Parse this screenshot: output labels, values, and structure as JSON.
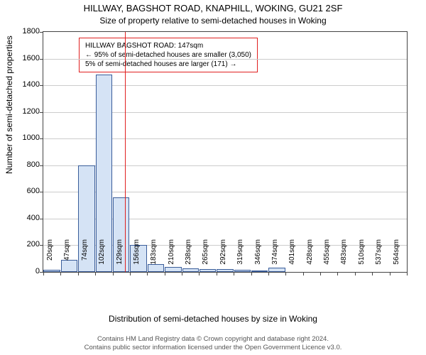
{
  "title": "HILLWAY, BAGSHOT ROAD, KNAPHILL, WOKING, GU21 2SF",
  "subtitle": "Size of property relative to semi-detached houses in Woking",
  "ylabel": "Number of semi-detached properties",
  "xlabel": "Distribution of semi-detached houses by size in Woking",
  "footer_line1": "Contains HM Land Registry data © Crown copyright and database right 2024.",
  "footer_line2": "Contains public sector information licensed under the Open Government Licence v3.0.",
  "chart": {
    "type": "histogram",
    "background_color": "#ffffff",
    "grid_color": "#cccccc",
    "axis_color": "#444444",
    "bar_fill": "#d5e3f5",
    "bar_border": "#3a5d9a",
    "marker_color": "#e02020",
    "ylim": [
      0,
      1800
    ],
    "ytick_step": 200,
    "yticks": [
      0,
      200,
      400,
      600,
      800,
      1000,
      1200,
      1400,
      1600,
      1800
    ],
    "xtick_labels": [
      "20sqm",
      "47sqm",
      "74sqm",
      "102sqm",
      "129sqm",
      "156sqm",
      "183sqm",
      "210sqm",
      "238sqm",
      "265sqm",
      "292sqm",
      "319sqm",
      "346sqm",
      "374sqm",
      "401sqm",
      "428sqm",
      "455sqm",
      "483sqm",
      "510sqm",
      "537sqm",
      "564sqm"
    ],
    "bar_values": [
      15,
      90,
      800,
      1480,
      560,
      200,
      60,
      40,
      25,
      20,
      20,
      15,
      10,
      30,
      0,
      0,
      0,
      0,
      0,
      0,
      0
    ],
    "marker_value_sqm": 147,
    "legend": {
      "line1": "HILLWAY BAGSHOT ROAD: 147sqm",
      "line2": "← 95% of semi-detached houses are smaller (3,050)",
      "line3": "5% of semi-detached houses are larger (171) →"
    },
    "title_fontsize": 13,
    "subtitle_fontsize": 12,
    "axis_label_fontsize": 12,
    "tick_fontsize": 11,
    "legend_fontsize": 10,
    "footer_fontsize": 9.5
  }
}
